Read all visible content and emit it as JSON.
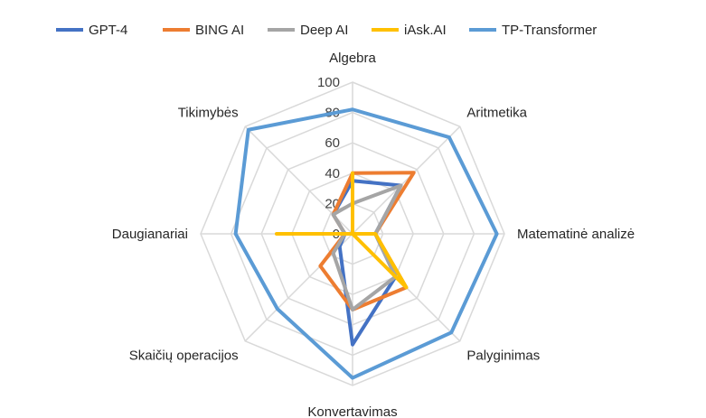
{
  "chart_data": {
    "type": "radar",
    "categories": [
      "Algebra",
      "Aritmetika",
      "Matematinė analizė",
      "Palyginimas",
      "Konvertavimas",
      "Skaičių operacijos",
      "Daugianariai",
      "Tikimybės"
    ],
    "r_ticks": [
      "0",
      "20",
      "40",
      "60",
      "80",
      "100"
    ],
    "rlim": [
      0,
      100
    ],
    "grid": true,
    "legend_position": "top",
    "series": [
      {
        "name": "GPT-4",
        "color": "#4472C4",
        "values": [
          35,
          45,
          15,
          40,
          73,
          12,
          5,
          18
        ]
      },
      {
        "name": "BING AI",
        "color": "#ED7D31",
        "values": [
          40,
          57,
          15,
          50,
          50,
          30,
          5,
          18
        ]
      },
      {
        "name": "Deep AI",
        "color": "#A5A5A5",
        "values": [
          20,
          45,
          15,
          40,
          50,
          18,
          5,
          18
        ]
      },
      {
        "name": "iAsk.AI",
        "color": "#FFC000",
        "values": [
          40,
          0,
          15,
          50,
          0,
          0,
          50,
          0
        ]
      },
      {
        "name": "TP-Transformer",
        "color": "#5B9BD5",
        "values": [
          82,
          90,
          95,
          92,
          95,
          70,
          77,
          97
        ]
      }
    ]
  }
}
